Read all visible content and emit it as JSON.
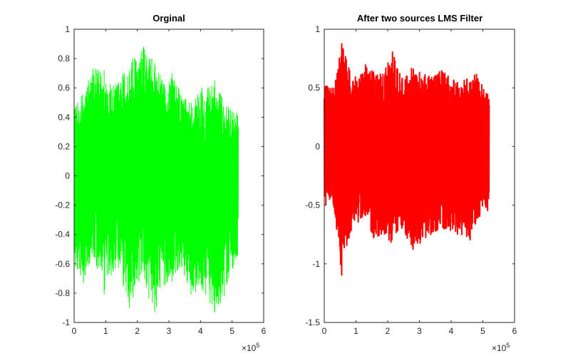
{
  "figure": {
    "background": "#ffffff",
    "axis_color": "#262626"
  },
  "chart_data": [
    {
      "type": "line",
      "title": "Orginal",
      "color": "#00ff00",
      "xlim": [
        0,
        6
      ],
      "ylim": [
        -1,
        1
      ],
      "xticks": [
        "0",
        "1",
        "2",
        "3",
        "4",
        "5",
        "6"
      ],
      "yticks": [
        "-1",
        "-0.8",
        "-0.6",
        "-0.4",
        "-0.2",
        "0",
        "0.2",
        "0.4",
        "0.6",
        "0.8",
        "1"
      ],
      "x_exponent_base": "×10",
      "x_exponent_power": "5",
      "x_data_range": [
        0,
        5.2
      ],
      "series": [
        {
          "peaks_positive": [
            [
              0.05,
              0.47
            ],
            [
              0.45,
              0.65
            ],
            [
              0.6,
              0.73
            ],
            [
              0.95,
              0.72
            ],
            [
              1.2,
              0.6
            ],
            [
              1.55,
              0.7
            ],
            [
              1.85,
              0.8
            ],
            [
              2.2,
              0.88
            ],
            [
              2.55,
              0.77
            ],
            [
              2.85,
              0.62
            ],
            [
              3.1,
              0.7
            ],
            [
              3.3,
              0.6
            ],
            [
              3.65,
              0.5
            ],
            [
              4.05,
              0.6
            ],
            [
              4.45,
              0.65
            ],
            [
              4.65,
              0.55
            ],
            [
              4.95,
              0.45
            ],
            [
              5.15,
              0.43
            ]
          ],
          "peaks_negative": [
            [
              0.05,
              -0.62
            ],
            [
              0.3,
              -0.73
            ],
            [
              0.6,
              -0.55
            ],
            [
              0.95,
              -0.81
            ],
            [
              1.3,
              -0.63
            ],
            [
              1.75,
              -0.9
            ],
            [
              2.05,
              -0.72
            ],
            [
              2.55,
              -0.93
            ],
            [
              2.85,
              -0.75
            ],
            [
              3.1,
              -0.72
            ],
            [
              3.35,
              -0.62
            ],
            [
              3.7,
              -0.81
            ],
            [
              4.05,
              -0.77
            ],
            [
              4.45,
              -0.93
            ],
            [
              4.75,
              -0.82
            ],
            [
              5.15,
              -0.55
            ]
          ]
        }
      ]
    },
    {
      "type": "line",
      "title": "After two sources LMS Filter",
      "color": "#ff0000",
      "xlim": [
        0,
        6
      ],
      "ylim": [
        -1.5,
        1
      ],
      "xticks": [
        "0",
        "1",
        "2",
        "3",
        "4",
        "5",
        "6"
      ],
      "yticks": [
        "-1.5",
        "-1",
        "-0.5",
        "0",
        "0.5",
        "1"
      ],
      "x_exponent_base": "×10",
      "x_exponent_power": "5",
      "x_data_range": [
        0,
        5.2
      ],
      "series": [
        {
          "peaks_positive": [
            [
              0.05,
              0.52
            ],
            [
              0.3,
              0.5
            ],
            [
              0.55,
              0.88
            ],
            [
              0.8,
              0.65
            ],
            [
              1.1,
              0.58
            ],
            [
              1.3,
              0.7
            ],
            [
              1.55,
              0.64
            ],
            [
              1.85,
              0.62
            ],
            [
              2.15,
              0.81
            ],
            [
              2.45,
              0.58
            ],
            [
              2.75,
              0.67
            ],
            [
              3.3,
              0.6
            ],
            [
              3.7,
              0.65
            ],
            [
              4.2,
              0.55
            ],
            [
              4.5,
              0.58
            ],
            [
              4.8,
              0.62
            ],
            [
              5.15,
              0.45
            ]
          ],
          "peaks_negative": [
            [
              0.05,
              -0.5
            ],
            [
              0.25,
              -0.42
            ],
            [
              0.55,
              -1.1
            ],
            [
              0.85,
              -0.72
            ],
            [
              1.2,
              -0.6
            ],
            [
              1.55,
              -0.78
            ],
            [
              1.9,
              -0.75
            ],
            [
              2.1,
              -0.82
            ],
            [
              2.45,
              -0.7
            ],
            [
              2.8,
              -0.88
            ],
            [
              3.2,
              -0.78
            ],
            [
              3.55,
              -0.72
            ],
            [
              3.85,
              -0.7
            ],
            [
              4.2,
              -0.75
            ],
            [
              4.6,
              -0.8
            ],
            [
              4.9,
              -0.6
            ],
            [
              5.15,
              -0.55
            ]
          ]
        }
      ]
    }
  ]
}
